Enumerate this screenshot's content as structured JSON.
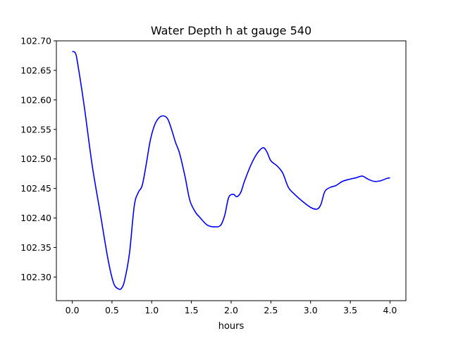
{
  "chart_data": {
    "type": "line",
    "title": "Water Depth h at gauge 540",
    "xlabel": "hours",
    "ylabel": "",
    "xlim": [
      -0.2,
      4.2
    ],
    "ylim": [
      102.26,
      102.7
    ],
    "xticks": [
      0.0,
      0.5,
      1.0,
      1.5,
      2.0,
      2.5,
      3.0,
      3.5,
      4.0
    ],
    "xtick_labels": [
      "0.0",
      "0.5",
      "1.0",
      "1.5",
      "2.0",
      "2.5",
      "3.0",
      "3.5",
      "4.0"
    ],
    "yticks": [
      102.3,
      102.35,
      102.4,
      102.45,
      102.5,
      102.55,
      102.6,
      102.65,
      102.7
    ],
    "ytick_labels": [
      "102.30",
      "102.35",
      "102.40",
      "102.45",
      "102.50",
      "102.55",
      "102.60",
      "102.65",
      "102.70"
    ],
    "grid": false,
    "series": [
      {
        "color": "#0000ff",
        "x": [
          0.0,
          0.04,
          0.07,
          0.15,
          0.25,
          0.35,
          0.45,
          0.52,
          0.58,
          0.62,
          0.66,
          0.72,
          0.78,
          0.83,
          0.88,
          0.93,
          0.98,
          1.03,
          1.08,
          1.14,
          1.2,
          1.25,
          1.3,
          1.35,
          1.42,
          1.48,
          1.55,
          1.6,
          1.7,
          1.8,
          1.87,
          1.92,
          1.97,
          2.03,
          2.07,
          2.12,
          2.17,
          2.25,
          2.32,
          2.4,
          2.45,
          2.5,
          2.58,
          2.65,
          2.72,
          2.8,
          2.9,
          3.0,
          3.08,
          3.13,
          3.18,
          3.25,
          3.32,
          3.4,
          3.5,
          3.57,
          3.65,
          3.72,
          3.8,
          3.88,
          3.96,
          4.0
        ],
        "y": [
          102.682,
          102.679,
          102.66,
          102.59,
          102.49,
          102.41,
          102.33,
          102.29,
          102.28,
          102.281,
          102.295,
          102.34,
          102.42,
          102.443,
          102.455,
          102.49,
          102.53,
          102.555,
          102.568,
          102.573,
          102.568,
          102.55,
          102.528,
          102.51,
          102.47,
          102.43,
          102.41,
          102.402,
          102.388,
          102.385,
          102.388,
          102.405,
          102.435,
          102.44,
          102.436,
          102.443,
          102.463,
          102.49,
          102.508,
          102.519,
          102.512,
          102.497,
          102.488,
          102.476,
          102.452,
          102.44,
          102.428,
          102.418,
          102.415,
          102.423,
          102.445,
          102.452,
          102.455,
          102.462,
          102.466,
          102.468,
          102.471,
          102.466,
          102.462,
          102.463,
          102.467,
          102.468
        ]
      }
    ]
  }
}
